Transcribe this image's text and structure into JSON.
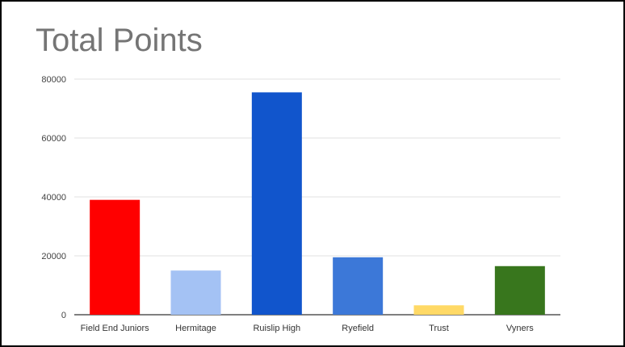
{
  "chart_data": {
    "type": "bar",
    "title": "Total Points",
    "xlabel": "",
    "ylabel": "",
    "categories": [
      "Field End Juniors",
      "Hermitage",
      "Ruislip High",
      "Ryefield",
      "Trust",
      "Vyners"
    ],
    "values": [
      39000,
      15000,
      75500,
      19500,
      3200,
      16500
    ],
    "colors": [
      "#ff0000",
      "#a4c2f4",
      "#1155cc",
      "#3c78d8",
      "#ffd966",
      "#38761d"
    ],
    "yticks": [
      0,
      20000,
      40000,
      60000,
      80000
    ],
    "ylim": [
      0,
      80000
    ],
    "grid": true,
    "legend": "none"
  }
}
